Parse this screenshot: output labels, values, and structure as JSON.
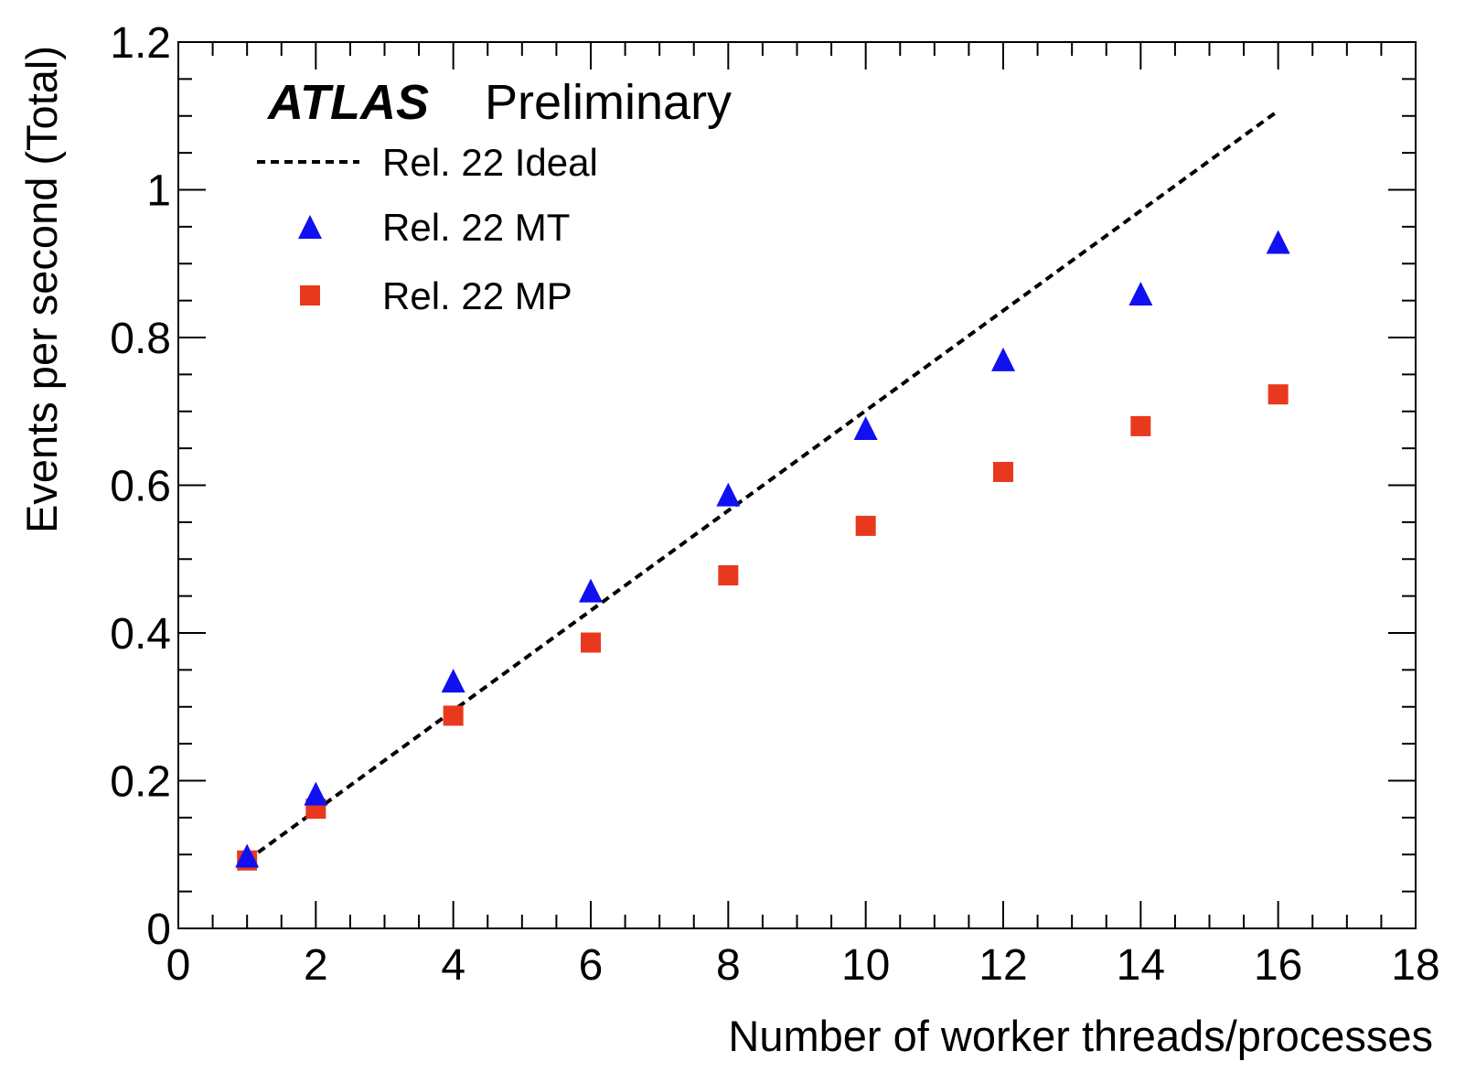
{
  "chart_data": {
    "type": "scatter",
    "experiment_label": "ATLAS",
    "status_label": "Preliminary",
    "xlabel": "Number of worker threads/processes",
    "ylabel": "Events per second (Total)",
    "xlim": [
      0,
      18
    ],
    "ylim": [
      0,
      1.2
    ],
    "x_ticks": [
      0,
      2,
      4,
      6,
      8,
      10,
      12,
      14,
      16,
      18
    ],
    "x_tick_labels": [
      "0",
      "2",
      "4",
      "6",
      "8",
      "10",
      "12",
      "14",
      "16",
      "18"
    ],
    "y_ticks": [
      0,
      0.2,
      0.4,
      0.6,
      0.8,
      1,
      1.2
    ],
    "y_tick_labels": [
      "0",
      "0.2",
      "0.4",
      "0.6",
      "0.8",
      "1",
      "1.2"
    ],
    "x_minor_step": 0.5,
    "y_minor_step": 0.05,
    "grid": false,
    "legend_position": "top-left",
    "series": [
      {
        "name": "Rel. 22 Ideal",
        "style": "dashed-line",
        "color": "#000000",
        "x": [
          1,
          16
        ],
        "y": [
          0.092,
          1.107
        ]
      },
      {
        "name": "Rel. 22 MT",
        "style": "triangle",
        "color": "#1010f0",
        "x": [
          1,
          2,
          4,
          6,
          8,
          10,
          12,
          14,
          16
        ],
        "y": [
          0.096,
          0.18,
          0.333,
          0.455,
          0.585,
          0.675,
          0.768,
          0.857,
          0.927
        ]
      },
      {
        "name": "Rel. 22 MP",
        "style": "square",
        "color": "#e8391f",
        "x": [
          1,
          2,
          4,
          6,
          8,
          10,
          12,
          14,
          16
        ],
        "y": [
          0.092,
          0.162,
          0.288,
          0.387,
          0.478,
          0.545,
          0.618,
          0.68,
          0.723
        ]
      }
    ]
  }
}
